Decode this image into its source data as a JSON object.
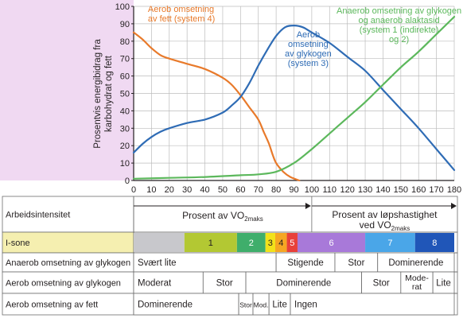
{
  "colors": {
    "fat": "#e87a2b",
    "glycogen_aerobic": "#2f6cb5",
    "anaerobic": "#5cb85c",
    "left_panel": "#f0d9f2",
    "zone_row_label_bg": "#f5efb0",
    "grid": "#bcbcbc"
  },
  "chart_data": {
    "type": "line",
    "ylabel_lines": [
      "Prosentvis energibidrag fra",
      "karbohydrat og fett"
    ],
    "x_ticks": [
      0,
      10,
      20,
      30,
      40,
      50,
      60,
      70,
      80,
      90,
      100,
      110,
      120,
      130,
      140,
      150,
      160,
      170,
      180
    ],
    "y_ticks": [
      0,
      10,
      20,
      30,
      40,
      50,
      60,
      70,
      80,
      90,
      100
    ],
    "xlim": [
      0,
      180
    ],
    "ylim": [
      0,
      100
    ],
    "grid": true,
    "series": [
      {
        "name_lines": [
          "Aerob omsetning",
          "av fett (system 4)"
        ],
        "color_key": "fat",
        "points": [
          [
            0,
            85
          ],
          [
            5,
            81
          ],
          [
            10,
            76
          ],
          [
            15,
            72
          ],
          [
            20,
            70
          ],
          [
            30,
            67
          ],
          [
            40,
            64
          ],
          [
            50,
            59
          ],
          [
            55,
            55
          ],
          [
            60,
            49
          ],
          [
            65,
            42
          ],
          [
            70,
            35
          ],
          [
            73,
            28
          ],
          [
            76,
            21
          ],
          [
            78,
            15
          ],
          [
            80,
            10
          ],
          [
            84,
            5
          ],
          [
            88,
            2
          ],
          [
            93,
            0
          ]
        ]
      },
      {
        "name_lines": [
          "Aerob",
          "omsetning",
          "av glykogen",
          "(system 3)"
        ],
        "color_key": "glycogen_aerobic",
        "points": [
          [
            0,
            16
          ],
          [
            5,
            21
          ],
          [
            10,
            25
          ],
          [
            15,
            28
          ],
          [
            20,
            30
          ],
          [
            30,
            33
          ],
          [
            40,
            35
          ],
          [
            50,
            39
          ],
          [
            55,
            43
          ],
          [
            60,
            48
          ],
          [
            65,
            56
          ],
          [
            70,
            66
          ],
          [
            75,
            75
          ],
          [
            80,
            83
          ],
          [
            85,
            88
          ],
          [
            90,
            89
          ],
          [
            95,
            88
          ],
          [
            100,
            85
          ],
          [
            110,
            79
          ],
          [
            120,
            71
          ],
          [
            130,
            63
          ],
          [
            140,
            52
          ],
          [
            150,
            41
          ],
          [
            160,
            30
          ],
          [
            170,
            18
          ],
          [
            180,
            6
          ]
        ]
      },
      {
        "name_lines": [
          "Anaerob omsetning av glykogen",
          "og anaerob alaktasid",
          "(system 1 (indirekte)",
          "og 2)"
        ],
        "color_key": "anaerobic",
        "points": [
          [
            0,
            1
          ],
          [
            20,
            1.5
          ],
          [
            40,
            2
          ],
          [
            60,
            3
          ],
          [
            70,
            3.5
          ],
          [
            80,
            5
          ],
          [
            90,
            10
          ],
          [
            100,
            18
          ],
          [
            110,
            27
          ],
          [
            120,
            36
          ],
          [
            130,
            45
          ],
          [
            140,
            55
          ],
          [
            150,
            65
          ],
          [
            160,
            74
          ],
          [
            170,
            84
          ],
          [
            180,
            94
          ]
        ]
      }
    ]
  },
  "table": {
    "row_labels": [
      "Arbeidsintensitet",
      "I-sone",
      "Anaerob omsetning av glykogen",
      "Aerob omsetning av glykogen",
      "Aerob omsetning av fett"
    ],
    "intensity": {
      "left_label": "Prosent av VO",
      "left_sub": "2maks",
      "right_line1": "Prosent av løpshastighet",
      "right_line2": "ved VO",
      "right_sub": "2maks"
    },
    "zones": [
      {
        "label": "",
        "from": 0,
        "to": 28.5,
        "color": "#c8c8cc"
      },
      {
        "label": "1",
        "from": 28.5,
        "to": 58,
        "color": "#b3c833"
      },
      {
        "label": "2",
        "from": 58,
        "to": 74,
        "color": "#3fae6b"
      },
      {
        "label": "3",
        "from": 74,
        "to": 79.5,
        "color": "#f2e21a"
      },
      {
        "label": "4",
        "from": 79.5,
        "to": 86,
        "color": "#f5a623"
      },
      {
        "label": "5",
        "from": 86,
        "to": 92,
        "color": "#e8403a"
      },
      {
        "label": "6",
        "from": 92,
        "to": 130,
        "color": "#a879d9"
      },
      {
        "label": "7",
        "from": 130,
        "to": 158,
        "color": "#4aa6e8"
      },
      {
        "label": "8",
        "from": 158,
        "to": 180,
        "color": "#2056b8"
      }
    ],
    "anaerobic_cells": [
      {
        "label": "Svært lite",
        "from": 0,
        "to": 80,
        "align": "left"
      },
      {
        "label": "Stigende",
        "from": 80,
        "to": 113,
        "align": "center"
      },
      {
        "label": "Stor",
        "from": 113,
        "to": 137,
        "align": "center"
      },
      {
        "label": "Dominerende",
        "from": 137,
        "to": 180,
        "align": "center"
      }
    ],
    "aerobic_glycogen_cells": [
      {
        "label": "Moderat",
        "from": 0,
        "to": 39,
        "align": "left"
      },
      {
        "label": "Stor",
        "from": 39,
        "to": 63,
        "align": "center"
      },
      {
        "label": "Dominerende",
        "from": 63,
        "to": 128,
        "align": "center"
      },
      {
        "label": "Stor",
        "from": 128,
        "to": 150,
        "align": "center"
      },
      {
        "label_lines": [
          "Mode-",
          "rat"
        ],
        "from": 150,
        "to": 168,
        "align": "center"
      },
      {
        "label": "Lite",
        "from": 168,
        "to": 180,
        "align": "center"
      }
    ],
    "aerobic_fat_cells": [
      {
        "label": "Dominerende",
        "from": 0,
        "to": 59,
        "align": "left"
      },
      {
        "label": "Stor",
        "from": 59,
        "to": 67,
        "align": "center"
      },
      {
        "label": "Mod.",
        "from": 67,
        "to": 76,
        "align": "center"
      },
      {
        "label": "Lite",
        "from": 76,
        "to": 88,
        "align": "center"
      },
      {
        "label": "Ingen",
        "from": 88,
        "to": 180,
        "align": "left"
      }
    ]
  }
}
